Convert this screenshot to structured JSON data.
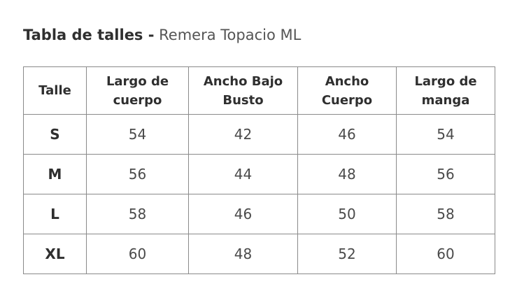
{
  "title": {
    "bold": "Tabla de talles -",
    "light": "Remera Topacio ML"
  },
  "table": {
    "headers": [
      "Talle",
      "Largo de cuerpo",
      "Ancho Bajo Busto",
      "Ancho Cuerpo",
      "Largo de manga"
    ],
    "rows": [
      [
        "S",
        "54",
        "42",
        "46",
        "54"
      ],
      [
        "M",
        "56",
        "44",
        "48",
        "56"
      ],
      [
        "L",
        "58",
        "46",
        "50",
        "58"
      ],
      [
        "XL",
        "60",
        "48",
        "52",
        "60"
      ]
    ]
  },
  "colors": {
    "border": "#8a8a8a",
    "text": "#333333",
    "background": "#ffffff"
  }
}
